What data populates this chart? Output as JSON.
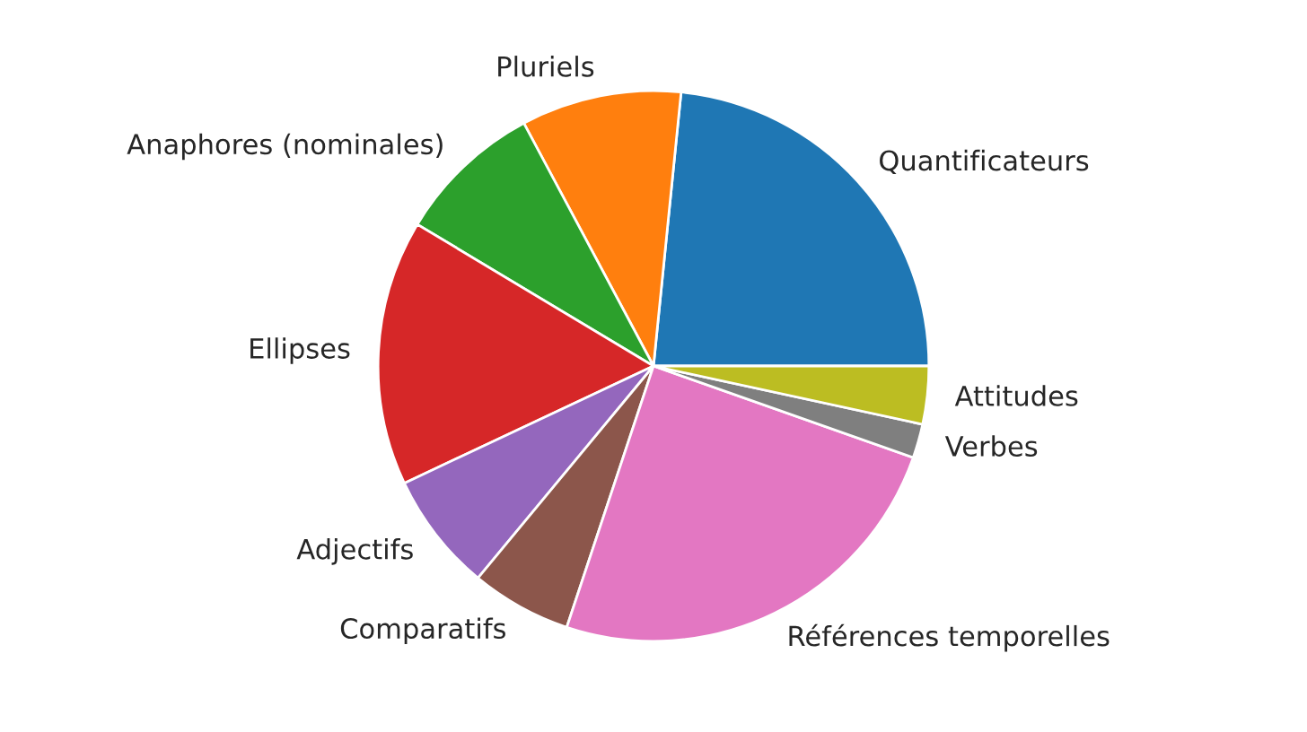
{
  "chart_data": {
    "type": "pie",
    "categories": [
      "Quantificateurs",
      "Pluriels",
      "Anaphores (nominales)",
      "Ellipses",
      "Adjectifs",
      "Comparatifs",
      "Références temporelles",
      "Verbes",
      "Attitudes"
    ],
    "values": [
      23.4,
      9.4,
      8.6,
      15.6,
      7,
      5.9,
      24.7,
      2,
      3.4
    ],
    "colors": [
      "#1f77b4",
      "#ff7f0e",
      "#2ca02c",
      "#d62728",
      "#9467bd",
      "#8c564b",
      "#e377c2",
      "#7f7f7f",
      "#bcbd22"
    ]
  }
}
